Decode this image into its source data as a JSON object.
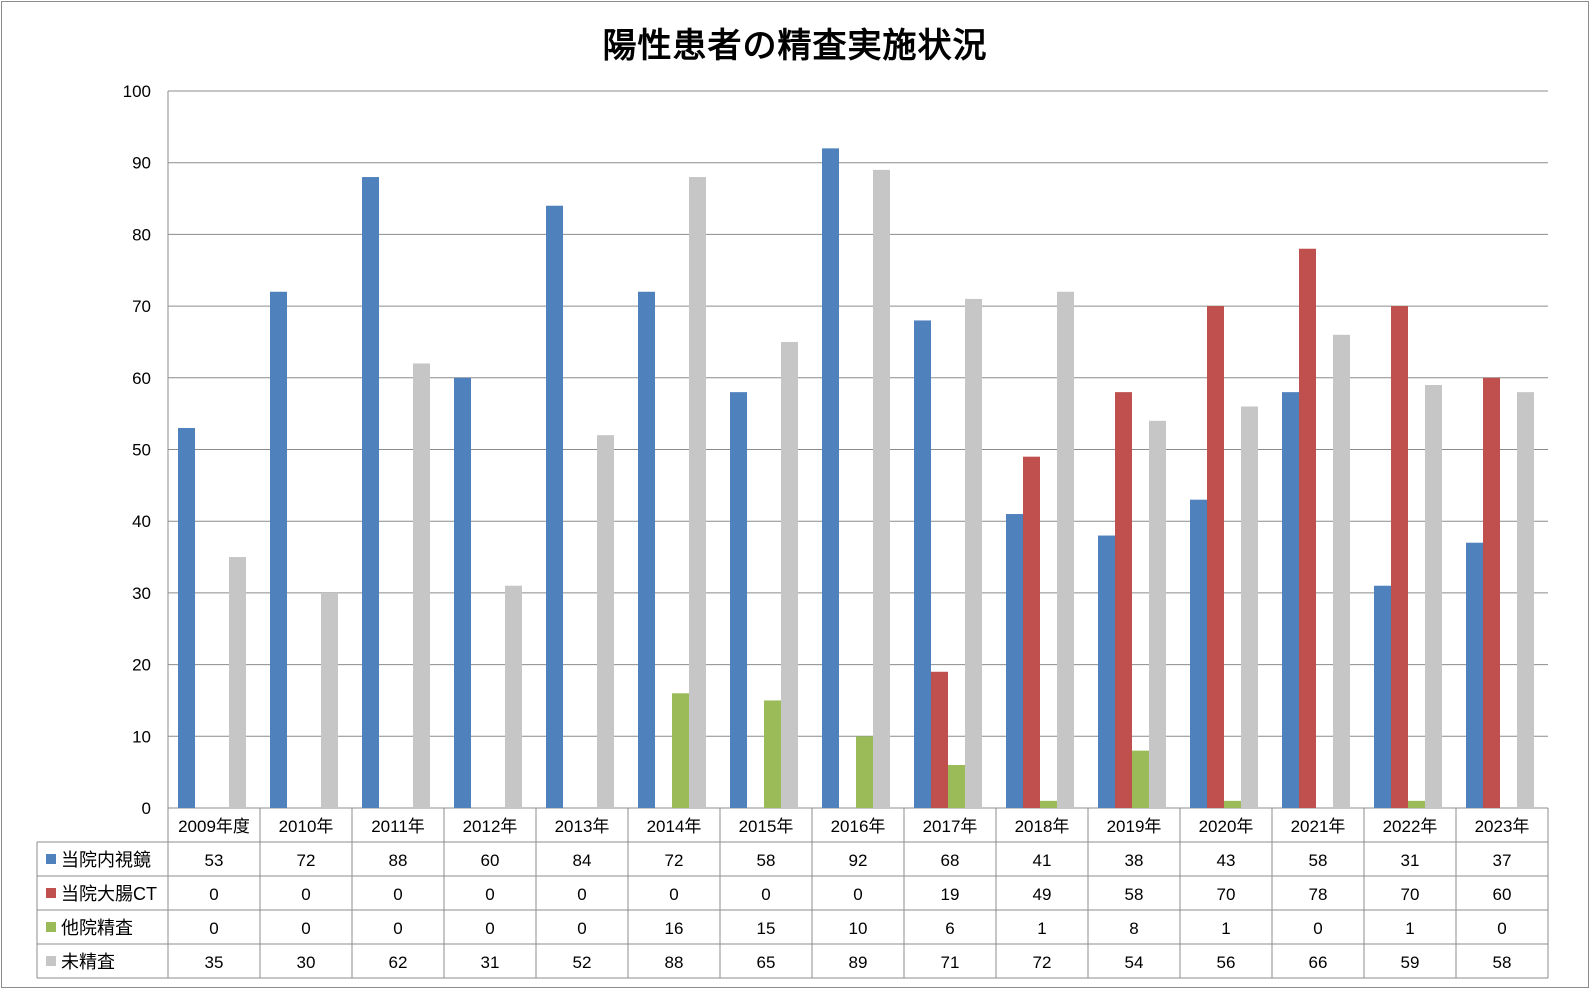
{
  "chart_data": {
    "type": "bar",
    "title": "陽性患者の精査実施状況",
    "xlabel": "",
    "ylabel": "",
    "ylim": [
      0,
      100
    ],
    "yticks": [
      0,
      10,
      20,
      30,
      40,
      50,
      60,
      70,
      80,
      90,
      100
    ],
    "grid": true,
    "legend": "data-table",
    "categories": [
      "2009年度",
      "2010年",
      "2011年",
      "2012年",
      "2013年",
      "2014年",
      "2015年",
      "2016年",
      "2017年",
      "2018年",
      "2019年",
      "2020年",
      "2021年",
      "2022年",
      "2023年"
    ],
    "series": [
      {
        "name": "当院内視鏡",
        "color": "#4f81bd",
        "values": [
          53,
          72,
          88,
          60,
          84,
          72,
          58,
          92,
          68,
          41,
          38,
          43,
          58,
          31,
          37
        ]
      },
      {
        "name": "当院大腸CT",
        "color": "#c0504d",
        "values": [
          0,
          0,
          0,
          0,
          0,
          0,
          0,
          0,
          19,
          49,
          58,
          70,
          78,
          70,
          60
        ]
      },
      {
        "name": "他院精査",
        "color": "#9bbb59",
        "values": [
          0,
          0,
          0,
          0,
          0,
          16,
          15,
          10,
          6,
          1,
          8,
          1,
          0,
          1,
          0
        ]
      },
      {
        "name": "未精査",
        "color": "#c6c6c6",
        "values": [
          35,
          30,
          62,
          31,
          52,
          88,
          65,
          89,
          71,
          72,
          54,
          56,
          66,
          59,
          58
        ]
      }
    ]
  }
}
